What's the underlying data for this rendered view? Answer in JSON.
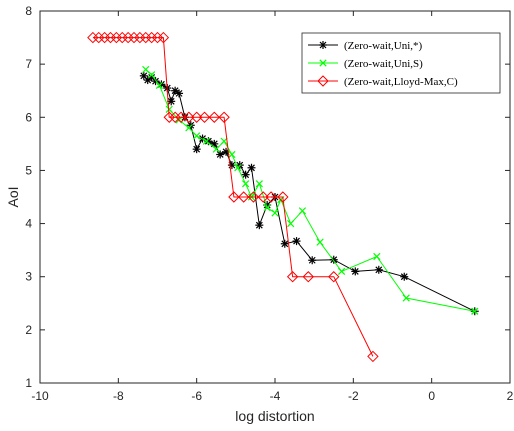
{
  "chart_data": {
    "type": "line",
    "title": "",
    "xlabel": "log distortion",
    "ylabel": "AoI",
    "xlim": [
      -10,
      2
    ],
    "ylim": [
      1,
      8
    ],
    "xticks": [
      -10,
      -8,
      -6,
      -4,
      -2,
      0,
      2
    ],
    "yticks": [
      1,
      2,
      3,
      4,
      5,
      6,
      7,
      8
    ],
    "xtick_labels": [
      "-10",
      "-8",
      "-6",
      "-4",
      "-2",
      "0",
      "2"
    ],
    "ytick_labels": [
      "1",
      "2",
      "3",
      "4",
      "5",
      "6",
      "7",
      "8"
    ],
    "grid": false,
    "legend_position": "top-right",
    "series": [
      {
        "name": "(Zero-wait,Uni,*)",
        "color": "#000000",
        "marker": "asterisk",
        "x": [
          -7.35,
          -7.25,
          -7.15,
          -7.05,
          -6.9,
          -6.75,
          -6.65,
          -6.55,
          -6.45,
          -6.3,
          -6.15,
          -6.0,
          -5.85,
          -5.7,
          -5.55,
          -5.4,
          -5.25,
          -5.1,
          -4.9,
          -4.75,
          -4.6,
          -4.4,
          -4.2,
          -4.0,
          -3.75,
          -3.45,
          -3.05,
          -2.5,
          -1.95,
          -1.35,
          -0.7,
          1.1
        ],
        "y": [
          6.78,
          6.7,
          6.75,
          6.68,
          6.62,
          6.55,
          6.3,
          6.5,
          6.45,
          6.0,
          5.85,
          5.4,
          5.6,
          5.55,
          5.5,
          5.3,
          5.35,
          5.1,
          5.1,
          4.92,
          5.05,
          3.97,
          4.35,
          4.5,
          3.62,
          3.67,
          3.31,
          3.32,
          3.1,
          3.13,
          3.0,
          2.35
        ]
      },
      {
        "name": "(Zero-wait,Uni,S)",
        "color": "#00ff00",
        "marker": "x",
        "x": [
          -7.3,
          -7.15,
          -6.95,
          -6.7,
          -6.45,
          -6.2,
          -6.0,
          -5.75,
          -5.5,
          -5.3,
          -5.1,
          -4.95,
          -4.75,
          -4.6,
          -4.4,
          -4.2,
          -4.0,
          -3.85,
          -3.6,
          -3.3,
          -2.85,
          -2.3,
          -1.4,
          -0.65,
          1.1
        ],
        "y": [
          6.9,
          6.8,
          6.6,
          6.15,
          5.95,
          5.8,
          5.65,
          5.55,
          5.4,
          5.55,
          5.3,
          5.05,
          4.75,
          4.5,
          4.75,
          4.3,
          4.2,
          4.45,
          4.0,
          4.24,
          3.65,
          3.1,
          3.38,
          2.6,
          2.35
        ]
      },
      {
        "name": "(Zero-wait,Lloyd-Max,C)",
        "color": "#ff0000",
        "marker": "diamond",
        "x": [
          -8.65,
          -8.5,
          -8.35,
          -8.2,
          -8.05,
          -7.9,
          -7.75,
          -7.6,
          -7.45,
          -7.3,
          -7.15,
          -7.0,
          -6.85,
          -6.7,
          -6.55,
          -6.4,
          -6.2,
          -6.0,
          -5.8,
          -5.55,
          -5.3,
          -5.05,
          -4.8,
          -4.55,
          -4.3,
          -4.1,
          -3.8,
          -3.55,
          -3.15,
          -2.5,
          -1.5
        ],
        "y": [
          7.5,
          7.5,
          7.5,
          7.5,
          7.5,
          7.5,
          7.5,
          7.5,
          7.5,
          7.5,
          7.5,
          7.5,
          7.5,
          6.0,
          6.0,
          6.0,
          6.0,
          6.0,
          6.0,
          6.0,
          6.0,
          4.5,
          4.5,
          4.5,
          4.5,
          4.5,
          4.5,
          3.0,
          3.0,
          3.0,
          1.5
        ]
      }
    ]
  }
}
